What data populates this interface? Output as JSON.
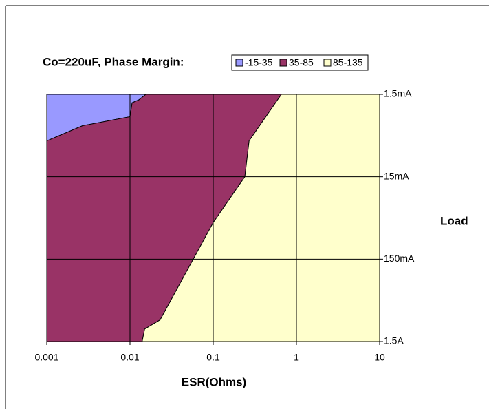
{
  "chart_data": {
    "type": "contour",
    "title": "Co=220uF, Phase Margin:",
    "xlabel": "ESR(Ohms)",
    "ylabel": "Load",
    "xscale": "log",
    "yscale": "log",
    "yaxis_side": "right",
    "y_inverted": true,
    "xlim": [
      0.001,
      10
    ],
    "xticks": [
      0.001,
      0.01,
      0.1,
      1,
      10
    ],
    "ylim": [
      1.5,
      1500
    ],
    "yticks": [
      {
        "value": 1.5,
        "label": "1.5mA"
      },
      {
        "value": 15,
        "label": "15mA"
      },
      {
        "value": 150,
        "label": "150mA"
      },
      {
        "value": 1500,
        "label": "1.5A"
      }
    ],
    "grid": true,
    "legend": "top",
    "series": [
      {
        "name": "-15-35",
        "color": "#9999ff",
        "x": [
          0.001,
          0.001,
          0.0027,
          0.01,
          0.0106,
          0.0128,
          0.0155
        ],
        "y": [
          1.5,
          5.5,
          3.6,
          2.8,
          1.9,
          1.75,
          1.5
        ]
      },
      {
        "name": "35-85",
        "color": "#993366",
        "x": [
          0.0155,
          0.0128,
          0.0106,
          0.01,
          0.0027,
          0.001,
          0.001,
          0.014,
          0.015,
          0.023,
          0.1,
          0.24,
          0.27,
          0.66
        ],
        "y": [
          1.5,
          1.75,
          1.9,
          2.8,
          3.6,
          5.5,
          1500,
          1500,
          1060,
          820,
          54,
          15,
          5.5,
          1.5
        ]
      },
      {
        "name": "85-135",
        "color": "#ffffcc",
        "x": [
          0.66,
          0.27,
          0.24,
          0.1,
          0.023,
          0.015,
          0.014,
          10,
          10
        ],
        "y": [
          1.5,
          5.5,
          15,
          54,
          820,
          1060,
          1500,
          1500,
          1.5
        ]
      }
    ]
  }
}
